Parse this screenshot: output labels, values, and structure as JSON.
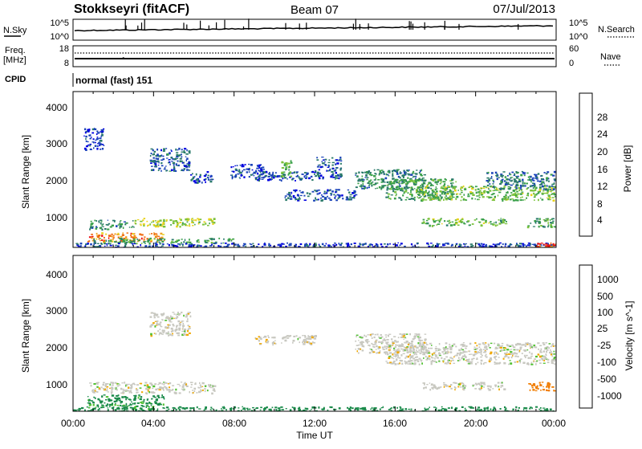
{
  "header": {
    "title": "Stokkseyri (fitACF)",
    "beam": "Beam 07",
    "date": "07/Jul/2013"
  },
  "noise_panel": {
    "left_label": "N.Sky",
    "left_ticks": [
      "10^5",
      "10^0"
    ],
    "right_label": "N.Search",
    "right_ticks": [
      "10^5",
      "10^0"
    ]
  },
  "freq_panel": {
    "left_label_top": "Freq.",
    "left_label_unit": "[MHz]",
    "left_ticks": [
      "18",
      "8"
    ],
    "right_label": "Nave",
    "right_ticks": [
      "60",
      "0"
    ]
  },
  "cpid": {
    "label": "CPID",
    "value": "normal (fast) 151"
  },
  "x_axis": {
    "label": "Time UT",
    "ticks": [
      "00:00",
      "04:00",
      "08:00",
      "12:00",
      "16:00",
      "20:00",
      "00:00"
    ]
  },
  "colors": {
    "power": [
      "#0000e0",
      "#1a43b8",
      "#2a7a6a",
      "#3aa04a",
      "#7cc23c",
      "#e8d21a",
      "#f0a020",
      "#f06a10",
      "#ee1010"
    ],
    "velocity": [
      "#e00000",
      "#f04000",
      "#f07c00",
      "#f0a800",
      "#c8c8c0",
      "#c8c8c0",
      "#50c030",
      "#1a8a4a",
      "#1a5aa0",
      "#2020c0"
    ]
  },
  "chart_data": [
    {
      "type": "heatmap",
      "name": "power-panel",
      "xlabel": "Time UT",
      "ylabel": "Slant Range [km]",
      "y_ticks": [
        "1000",
        "2000",
        "3000",
        "4000"
      ],
      "colorbar_label": "Power [dB]",
      "colorbar_ticks": [
        "4",
        "8",
        "12",
        "16",
        "20",
        "24",
        "28"
      ],
      "xlim": [
        0,
        24
      ],
      "ylim": [
        180,
        4500
      ],
      "crange": [
        0,
        32
      ],
      "echo_regions": [
        {
          "t": [
            0.5,
            1.5
          ],
          "r": [
            2900,
            3500
          ],
          "v": 4
        },
        {
          "t": [
            3.8,
            5.8
          ],
          "r": [
            2300,
            2950
          ],
          "v": 7
        },
        {
          "t": [
            5.8,
            7.0
          ],
          "r": [
            2000,
            2300
          ],
          "v": 6
        },
        {
          "t": [
            7.8,
            9.5
          ],
          "r": [
            2100,
            2500
          ],
          "v": 5
        },
        {
          "t": [
            9.0,
            12.0
          ],
          "r": [
            2050,
            2300
          ],
          "v": 6
        },
        {
          "t": [
            10.3,
            10.8
          ],
          "r": [
            2150,
            2600
          ],
          "v": 14
        },
        {
          "t": [
            12.0,
            13.3
          ],
          "r": [
            2100,
            2700
          ],
          "v": 6
        },
        {
          "t": [
            14.0,
            17.5
          ],
          "r": [
            1800,
            2350
          ],
          "v": 10
        },
        {
          "t": [
            15.5,
            19.0
          ],
          "r": [
            1500,
            2100
          ],
          "v": 12
        },
        {
          "t": [
            17.0,
            24.0
          ],
          "r": [
            1500,
            1900
          ],
          "v": 15
        },
        {
          "t": [
            20.5,
            24.0
          ],
          "r": [
            1800,
            2300
          ],
          "v": 8
        },
        {
          "t": [
            10.5,
            14.0
          ],
          "r": [
            1500,
            1800
          ],
          "v": 6
        },
        {
          "t": [
            0.8,
            3.0
          ],
          "r": [
            700,
            950
          ],
          "v": 10
        },
        {
          "t": [
            3.0,
            7.0
          ],
          "r": [
            780,
            1000
          ],
          "v": 17
        },
        {
          "t": [
            0.7,
            4.5
          ],
          "r": [
            350,
            600
          ],
          "v": 25
        },
        {
          "t": [
            1.0,
            8.0
          ],
          "r": [
            300,
            450
          ],
          "v": 12
        },
        {
          "t": [
            0.0,
            24.0
          ],
          "r": [
            180,
            320
          ],
          "v": 5
        },
        {
          "t": [
            17.3,
            21.5
          ],
          "r": [
            800,
            1000
          ],
          "v": 14
        },
        {
          "t": [
            22.5,
            24.0
          ],
          "r": [
            750,
            1000
          ],
          "v": 13
        },
        {
          "t": [
            23.0,
            24.0
          ],
          "r": [
            200,
            320
          ],
          "v": 28
        }
      ]
    },
    {
      "type": "heatmap",
      "name": "velocity-panel",
      "xlabel": "Time UT",
      "ylabel": "Slant Range [km]",
      "y_ticks": [
        "1000",
        "2000",
        "3000",
        "4000"
      ],
      "colorbar_label": "Velocity [m s^-1]",
      "colorbar_ticks": [
        "1000",
        "500",
        "100",
        "25",
        "-25",
        "-100",
        "-500",
        "-1000"
      ],
      "xlim": [
        0,
        24
      ],
      "ylim": [
        180,
        4500
      ],
      "crange": [
        -1000,
        1000
      ],
      "echo_regions": [
        {
          "t": [
            3.8,
            5.8
          ],
          "r": [
            2300,
            2950
          ],
          "v": 0
        },
        {
          "t": [
            9.0,
            12.0
          ],
          "r": [
            2050,
            2300
          ],
          "v": 0
        },
        {
          "t": [
            14.0,
            17.5
          ],
          "r": [
            1800,
            2350
          ],
          "v": 0
        },
        {
          "t": [
            15.5,
            24.0
          ],
          "r": [
            1500,
            2100
          ],
          "v": 0
        },
        {
          "t": [
            0.8,
            7.0
          ],
          "r": [
            700,
            1000
          ],
          "v": 0
        },
        {
          "t": [
            0.7,
            4.5
          ],
          "r": [
            250,
            650
          ],
          "v": 120
        },
        {
          "t": [
            0.0,
            24.0
          ],
          "r": [
            180,
            320
          ],
          "v": 150
        },
        {
          "t": [
            22.6,
            24.0
          ],
          "r": [
            750,
            1000
          ],
          "v": -300
        },
        {
          "t": [
            17.3,
            21.5
          ],
          "r": [
            800,
            1000
          ],
          "v": 0
        }
      ]
    }
  ]
}
